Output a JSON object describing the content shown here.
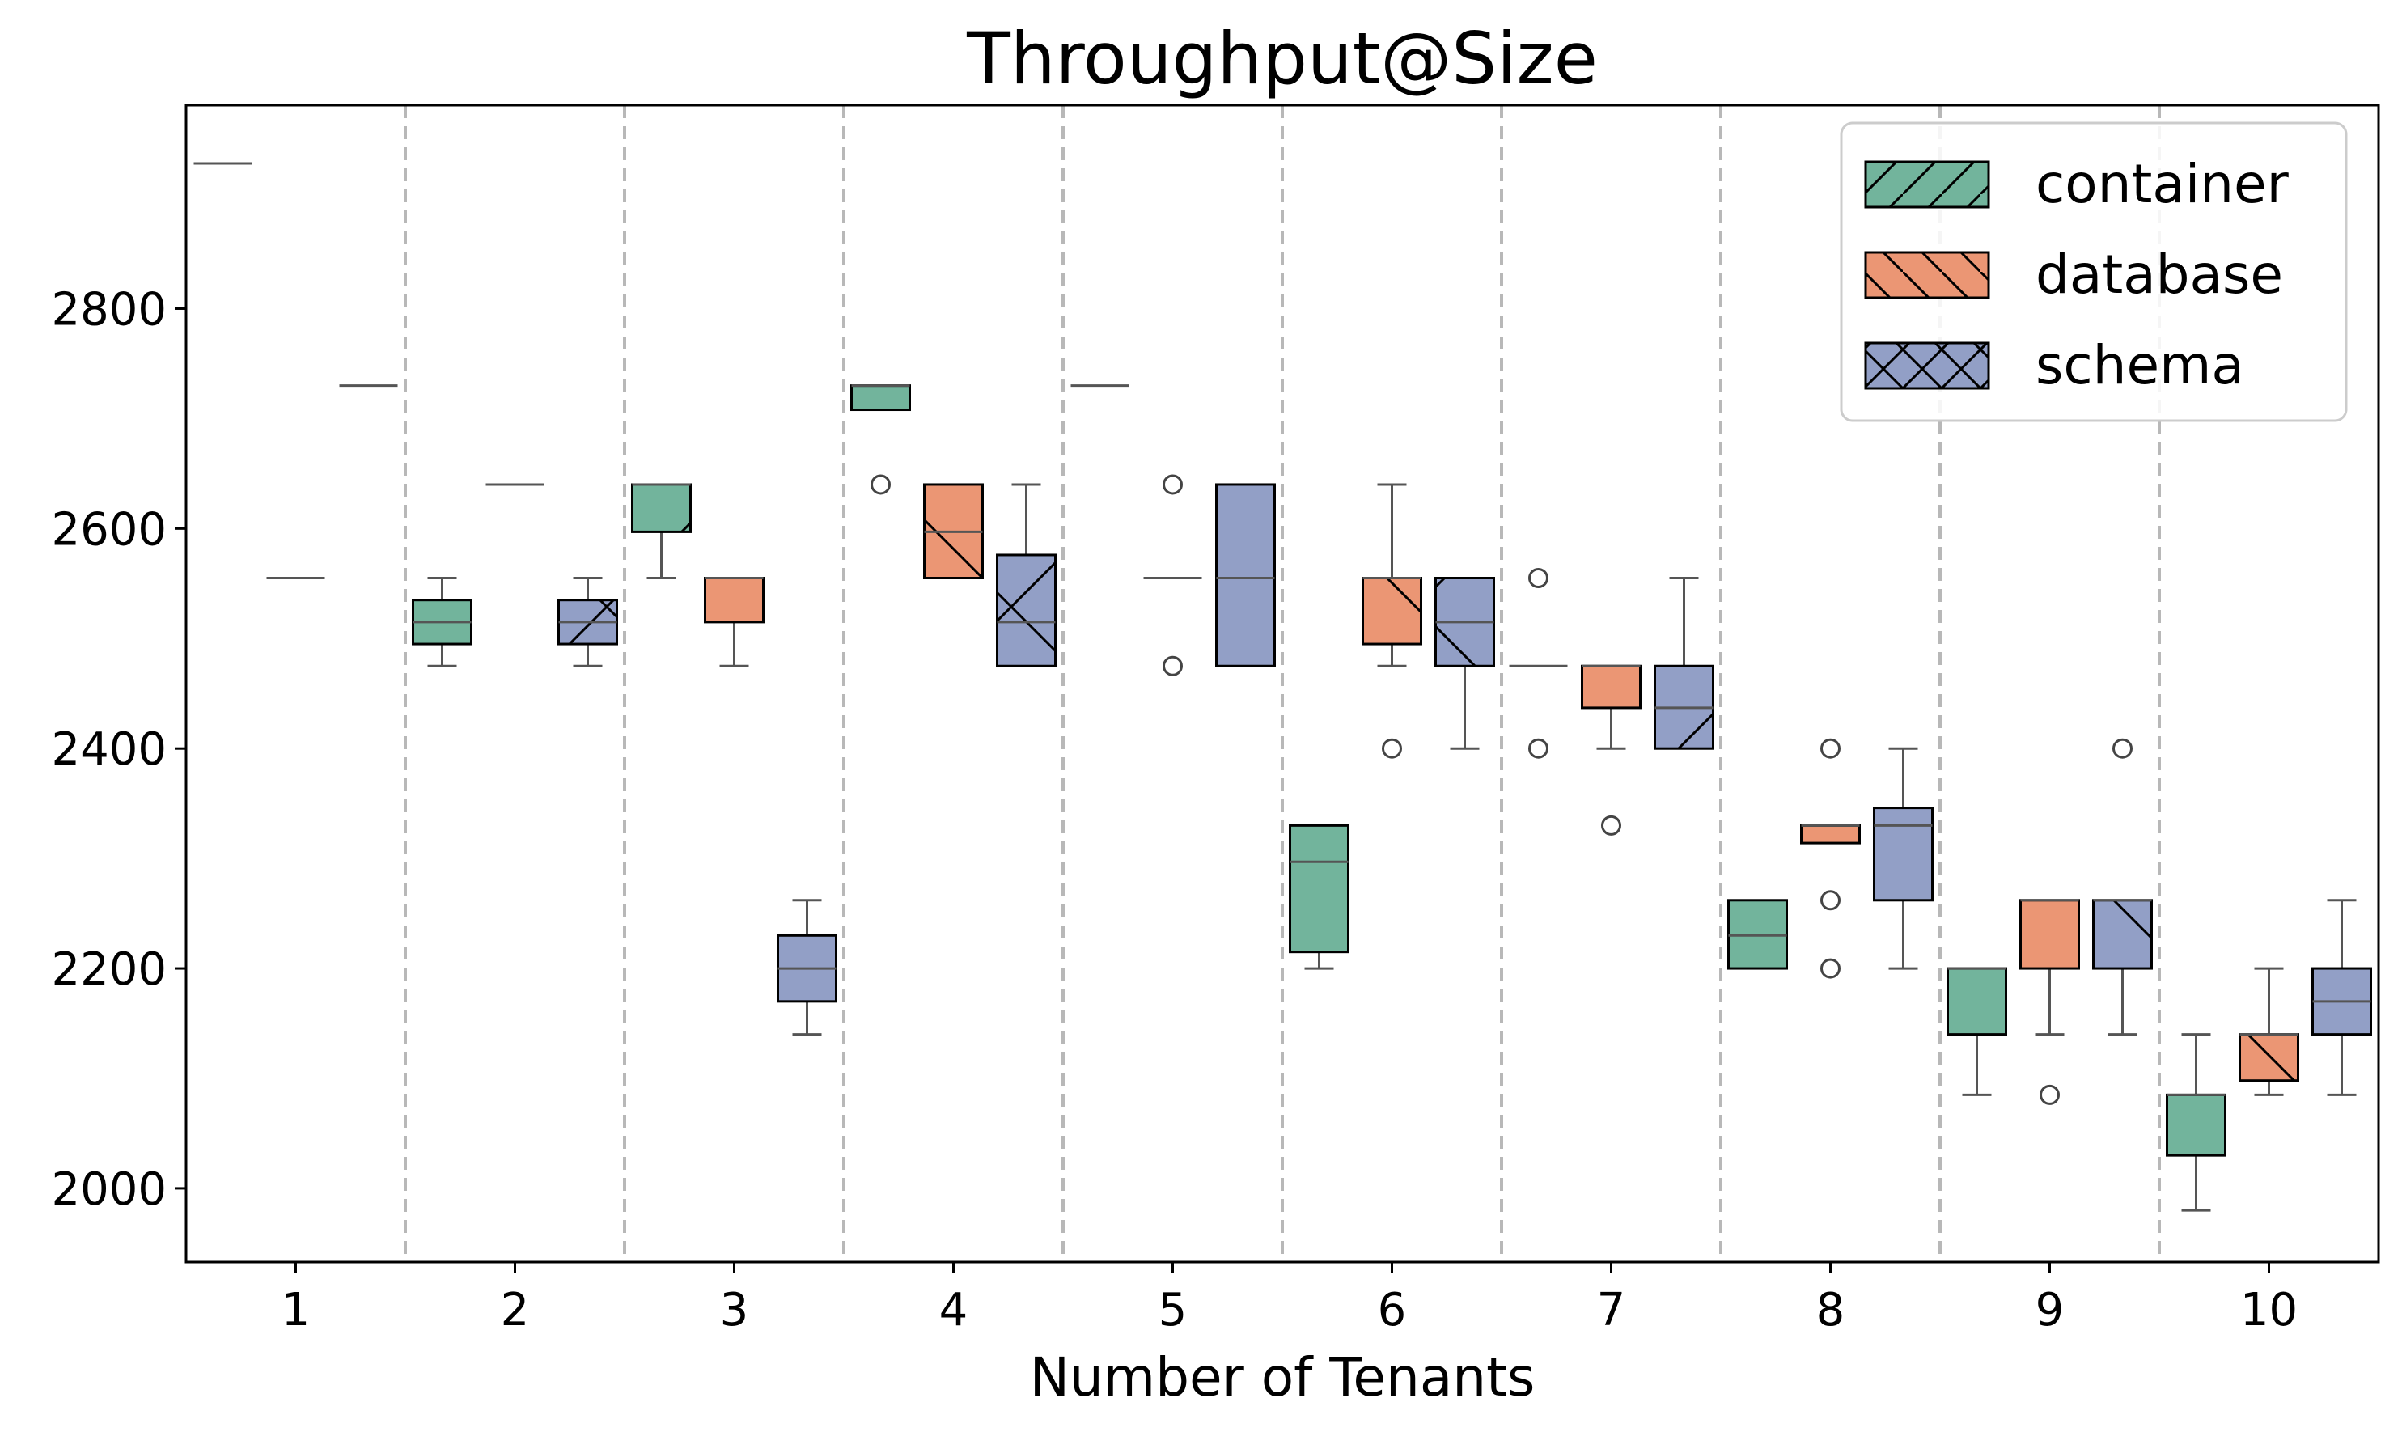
{
  "chart_data": {
    "type": "box",
    "title": "Throughput@Size",
    "xlabel": "Number of Tenants",
    "ylabel": "",
    "categories": [
      "1",
      "2",
      "3",
      "4",
      "5",
      "6",
      "7",
      "8",
      "9",
      "10"
    ],
    "yticks": [
      2000,
      2200,
      2400,
      2600,
      2800
    ],
    "ylim": [
      1933,
      2985
    ],
    "legend_position": "upper right",
    "category_separators": true,
    "series": [
      {
        "name": "container",
        "color": "#72b49c",
        "hatch": "/",
        "boxes": [
          {
            "q1": 2932,
            "median": 2932,
            "q3": 2932,
            "whislo": 2932,
            "whishi": 2932,
            "fliers": []
          },
          {
            "q1": 2495,
            "median": 2515,
            "q3": 2535,
            "whislo": 2475,
            "whishi": 2555,
            "fliers": []
          },
          {
            "q1": 2597,
            "median": 2640,
            "q3": 2640,
            "whislo": 2555,
            "whishi": 2640,
            "fliers": []
          },
          {
            "q1": 2708,
            "median": 2730,
            "q3": 2730,
            "whislo": 2708,
            "whishi": 2730,
            "fliers": [
              2640
            ]
          },
          {
            "q1": 2730,
            "median": 2730,
            "q3": 2730,
            "whislo": 2730,
            "whishi": 2730,
            "fliers": []
          },
          {
            "q1": 2215,
            "median": 2297,
            "q3": 2330,
            "whislo": 2200,
            "whishi": 2330,
            "fliers": []
          },
          {
            "q1": 2475,
            "median": 2475,
            "q3": 2475,
            "whislo": 2475,
            "whishi": 2475,
            "fliers": [
              2555,
              2400
            ]
          },
          {
            "q1": 2200,
            "median": 2230,
            "q3": 2262,
            "whislo": 2200,
            "whishi": 2262,
            "fliers": []
          },
          {
            "q1": 2140,
            "median": 2200,
            "q3": 2200,
            "whislo": 2085,
            "whishi": 2200,
            "fliers": []
          },
          {
            "q1": 2030,
            "median": 2085,
            "q3": 2085,
            "whislo": 1980,
            "whishi": 2140,
            "fliers": []
          }
        ]
      },
      {
        "name": "database",
        "color": "#eb9674",
        "hatch": "\\",
        "boxes": [
          {
            "q1": 2555,
            "median": 2555,
            "q3": 2555,
            "whislo": 2555,
            "whishi": 2555,
            "fliers": []
          },
          {
            "q1": 2640,
            "median": 2640,
            "q3": 2640,
            "whislo": 2640,
            "whishi": 2640,
            "fliers": []
          },
          {
            "q1": 2515,
            "median": 2555,
            "q3": 2555,
            "whislo": 2475,
            "whishi": 2555,
            "fliers": []
          },
          {
            "q1": 2555,
            "median": 2597,
            "q3": 2640,
            "whislo": 2555,
            "whishi": 2640,
            "fliers": []
          },
          {
            "q1": 2555,
            "median": 2555,
            "q3": 2555,
            "whislo": 2555,
            "whishi": 2555,
            "fliers": [
              2640,
              2475
            ]
          },
          {
            "q1": 2495,
            "median": 2555,
            "q3": 2555,
            "whislo": 2475,
            "whishi": 2640,
            "fliers": [
              2400
            ]
          },
          {
            "q1": 2437,
            "median": 2475,
            "q3": 2475,
            "whislo": 2400,
            "whishi": 2475,
            "fliers": [
              2330
            ]
          },
          {
            "q1": 2314,
            "median": 2330,
            "q3": 2330,
            "whislo": 2314,
            "whishi": 2330,
            "fliers": [
              2400,
              2262,
              2200
            ]
          },
          {
            "q1": 2200,
            "median": 2262,
            "q3": 2262,
            "whislo": 2140,
            "whishi": 2262,
            "fliers": [
              2085
            ]
          },
          {
            "q1": 2098,
            "median": 2140,
            "q3": 2140,
            "whislo": 2085,
            "whishi": 2200,
            "fliers": []
          }
        ]
      },
      {
        "name": "schema",
        "color": "#929fc6",
        "hatch": "x",
        "boxes": [
          {
            "q1": 2730,
            "median": 2730,
            "q3": 2730,
            "whislo": 2730,
            "whishi": 2730,
            "fliers": []
          },
          {
            "q1": 2495,
            "median": 2515,
            "q3": 2535,
            "whislo": 2475,
            "whishi": 2555,
            "fliers": []
          },
          {
            "q1": 2170,
            "median": 2200,
            "q3": 2230,
            "whislo": 2140,
            "whishi": 2262,
            "fliers": []
          },
          {
            "q1": 2475,
            "median": 2515,
            "q3": 2576,
            "whislo": 2475,
            "whishi": 2640,
            "fliers": []
          },
          {
            "q1": 2475,
            "median": 2555,
            "q3": 2640,
            "whislo": 2475,
            "whishi": 2640,
            "fliers": []
          },
          {
            "q1": 2475,
            "median": 2515,
            "q3": 2555,
            "whislo": 2400,
            "whishi": 2555,
            "fliers": []
          },
          {
            "q1": 2400,
            "median": 2437,
            "q3": 2475,
            "whislo": 2400,
            "whishi": 2555,
            "fliers": []
          },
          {
            "q1": 2262,
            "median": 2330,
            "q3": 2346,
            "whislo": 2200,
            "whishi": 2400,
            "fliers": []
          },
          {
            "q1": 2200,
            "median": 2262,
            "q3": 2262,
            "whislo": 2140,
            "whishi": 2262,
            "fliers": [
              2400
            ]
          },
          {
            "q1": 2140,
            "median": 2170,
            "q3": 2200,
            "whislo": 2085,
            "whishi": 2262,
            "fliers": []
          }
        ]
      }
    ]
  }
}
